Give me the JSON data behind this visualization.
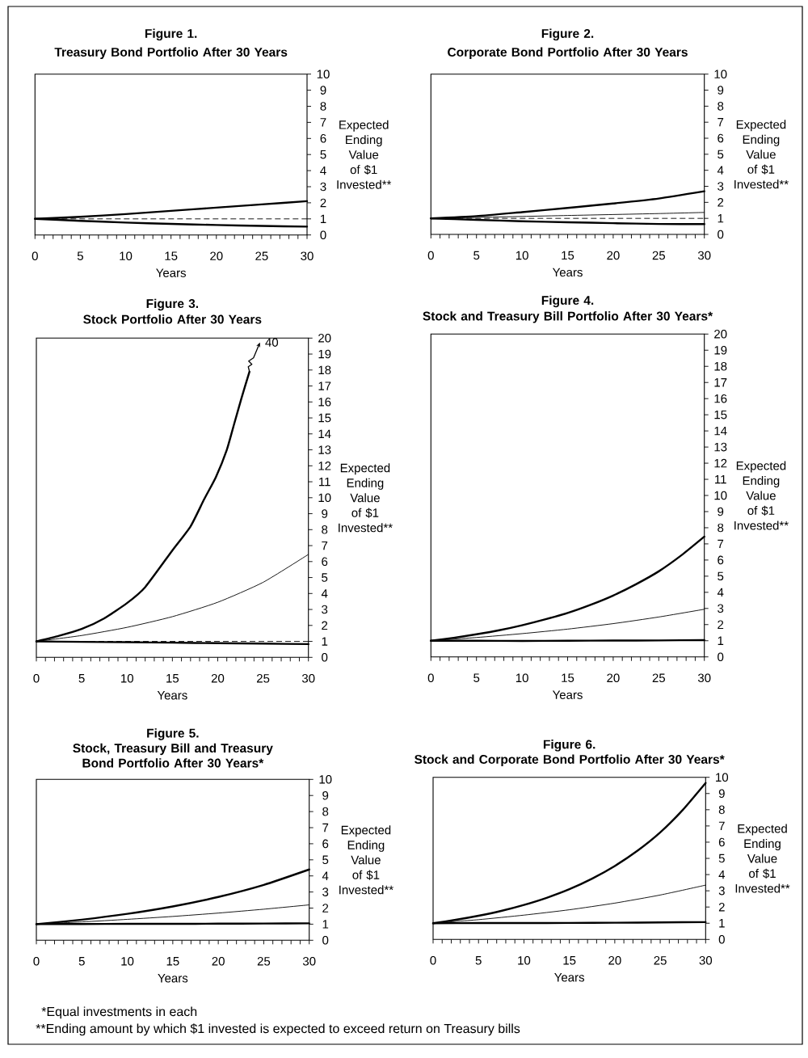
{
  "chart_data": [
    {
      "type": "line",
      "title": "Figure 1.",
      "subtitle": "Treasury Bond Portfolio After 30 Years",
      "xlabel": "Years",
      "ylabel": "Expected Ending Value of $1 Invested**",
      "x": [
        0,
        5,
        10,
        15,
        20,
        25,
        30
      ],
      "series": [
        {
          "color": "#000000",
          "values": [
            1,
            1.13,
            1.3,
            1.5,
            1.7,
            1.9,
            2.1
          ]
        },
        {
          "color": "#000000",
          "values": [
            1,
            0.88,
            0.77,
            0.69,
            0.62,
            0.56,
            0.52
          ]
        }
      ],
      "ref_lines": [
        {
          "axis": "y",
          "value": 1,
          "line_style": "dashed",
          "color": "#000000"
        }
      ],
      "xlim": [
        0,
        30
      ],
      "ylim": [
        0,
        10
      ],
      "xticks": [
        0,
        {
          "value": 1,
          "label": null
        },
        {
          "value": 2,
          "label": null
        },
        {
          "value": 3,
          "label": null
        },
        {
          "value": 4,
          "label": null
        },
        5,
        {
          "value": 6,
          "label": null
        },
        {
          "value": 7,
          "label": null
        },
        {
          "value": 8,
          "label": null
        },
        {
          "value": 9,
          "label": null
        },
        10,
        {
          "value": 11,
          "label": null
        },
        {
          "value": 12,
          "label": null
        },
        {
          "value": 13,
          "label": null
        },
        {
          "value": 14,
          "label": null
        },
        15,
        {
          "value": 16,
          "label": null
        },
        {
          "value": 17,
          "label": null
        },
        {
          "value": 18,
          "label": null
        },
        {
          "value": 19,
          "label": null
        },
        20,
        {
          "value": 21,
          "label": null
        },
        {
          "value": 22,
          "label": null
        },
        {
          "value": 23,
          "label": null
        },
        {
          "value": 24,
          "label": null
        },
        25,
        {
          "value": 26,
          "label": null
        },
        {
          "value": 27,
          "label": null
        },
        {
          "value": 28,
          "label": null
        },
        {
          "value": 29,
          "label": null
        },
        30
      ],
      "yticks": [
        0,
        1,
        2,
        3,
        4,
        5,
        6,
        7,
        8,
        9,
        10
      ]
    },
    {
      "type": "line",
      "title": "Figure 2.",
      "subtitle": "Corporate Bond Portfolio After 30 Years",
      "xlabel": "Years",
      "ylabel": "Expected Ending Value of $1 Invested**",
      "x": [
        0,
        5,
        10,
        15,
        20,
        25,
        30
      ],
      "series": [
        {
          "color": "#000000",
          "values": [
            1,
            1.14,
            1.39,
            1.65,
            1.93,
            2.24,
            2.69
          ]
        },
        {
          "color": "#000000",
          "values": [
            1,
            0.91,
            0.82,
            0.76,
            0.7,
            0.65,
            0.64
          ]
        },
        {
          "color": "#000000",
          "values": [
            1,
            1.06,
            1.12,
            1.18,
            1.24,
            1.3,
            1.37
          ]
        }
      ],
      "ref_lines": [
        {
          "axis": "y",
          "value": 1,
          "line_style": "dashed",
          "color": "#000000"
        }
      ],
      "xlim": [
        0,
        30
      ],
      "ylim": [
        0,
        10
      ],
      "xticks": [
        0,
        {
          "value": 1,
          "label": null
        },
        {
          "value": 2,
          "label": null
        },
        {
          "value": 3,
          "label": null
        },
        {
          "value": 4,
          "label": null
        },
        5,
        {
          "value": 6,
          "label": null
        },
        {
          "value": 7,
          "label": null
        },
        {
          "value": 8,
          "label": null
        },
        {
          "value": 9,
          "label": null
        },
        10,
        {
          "value": 11,
          "label": null
        },
        {
          "value": 12,
          "label": null
        },
        {
          "value": 13,
          "label": null
        },
        {
          "value": 14,
          "label": null
        },
        15,
        {
          "value": 16,
          "label": null
        },
        {
          "value": 17,
          "label": null
        },
        {
          "value": 18,
          "label": null
        },
        {
          "value": 19,
          "label": null
        },
        20,
        {
          "value": 21,
          "label": null
        },
        {
          "value": 22,
          "label": null
        },
        {
          "value": 23,
          "label": null
        },
        {
          "value": 24,
          "label": null
        },
        25,
        {
          "value": 26,
          "label": null
        },
        {
          "value": 27,
          "label": null
        },
        {
          "value": 28,
          "label": null
        },
        {
          "value": 29,
          "label": null
        },
        30
      ],
      "yticks": [
        0,
        1,
        2,
        3,
        4,
        5,
        6,
        7,
        8,
        9,
        10
      ]
    },
    {
      "type": "line",
      "title": "Figure 3.",
      "subtitle": "Stock Portfolio After 30 Years",
      "xlabel": "Years",
      "ylabel": "Expected Ending Value of $1 Invested**",
      "x": [
        0,
        5,
        10,
        15,
        20,
        25,
        30
      ],
      "series": [
        {
          "color": "#000000",
          "x": [
            0,
            2.5,
            5,
            7.5,
            10,
            12,
            15,
            17,
            18.5,
            19.8,
            21,
            21.8,
            22.6,
            23.5
          ],
          "values": [
            1,
            1.35,
            1.78,
            2.45,
            3.4,
            4.4,
            6.7,
            8.2,
            9.9,
            11.3,
            13.0,
            14.6,
            16.2,
            17.9
          ]
        },
        {
          "color": "#000000",
          "values": [
            1,
            0.97,
            0.95,
            0.92,
            0.89,
            0.86,
            0.83
          ]
        },
        {
          "color": "#000000",
          "values": [
            1,
            1.37,
            1.88,
            2.55,
            3.45,
            4.7,
            6.45
          ]
        }
      ],
      "ref_lines": [
        {
          "axis": "y",
          "value": 1,
          "line_style": "dashed",
          "color": "#000000"
        }
      ],
      "annotations": [
        "40"
      ],
      "xlim": [
        0,
        30
      ],
      "ylim": [
        0,
        20
      ],
      "xticks": [
        0,
        {
          "value": 1,
          "label": null
        },
        {
          "value": 2,
          "label": null
        },
        {
          "value": 3,
          "label": null
        },
        {
          "value": 4,
          "label": null
        },
        5,
        {
          "value": 6,
          "label": null
        },
        {
          "value": 7,
          "label": null
        },
        {
          "value": 8,
          "label": null
        },
        {
          "value": 9,
          "label": null
        },
        10,
        {
          "value": 11,
          "label": null
        },
        {
          "value": 12,
          "label": null
        },
        {
          "value": 13,
          "label": null
        },
        {
          "value": 14,
          "label": null
        },
        15,
        {
          "value": 16,
          "label": null
        },
        {
          "value": 17,
          "label": null
        },
        {
          "value": 18,
          "label": null
        },
        {
          "value": 19,
          "label": null
        },
        20,
        {
          "value": 21,
          "label": null
        },
        {
          "value": 22,
          "label": null
        },
        {
          "value": 23,
          "label": null
        },
        {
          "value": 24,
          "label": null
        },
        25,
        {
          "value": 26,
          "label": null
        },
        {
          "value": 27,
          "label": null
        },
        {
          "value": 28,
          "label": null
        },
        {
          "value": 29,
          "label": null
        },
        30
      ],
      "yticks": [
        0,
        1,
        2,
        3,
        4,
        5,
        6,
        7,
        8,
        9,
        10,
        11,
        12,
        13,
        14,
        15,
        16,
        17,
        18,
        19,
        20
      ]
    },
    {
      "type": "line",
      "title": "Figure 4.",
      "subtitle": "Stock and Treasury Bill Portfolio After 30 Years*",
      "xlabel": "Years",
      "ylabel": "Expected Ending Value of $1 Invested**",
      "x": [
        0,
        5,
        10,
        15,
        20,
        25,
        30
      ],
      "series": [
        {
          "color": "#000000",
          "x": [
            0,
            2.5,
            5,
            7.5,
            10,
            12.5,
            15,
            17.5,
            20,
            22.5,
            25,
            27.5,
            30
          ],
          "values": [
            1,
            1.18,
            1.4,
            1.65,
            1.96,
            2.32,
            2.72,
            3.22,
            3.8,
            4.5,
            5.3,
            6.3,
            7.45
          ]
        },
        {
          "color": "#000000",
          "values": [
            1,
            1,
            0.99,
            1,
            1.01,
            1.02,
            1.04
          ]
        },
        {
          "color": "#000000",
          "values": [
            1,
            1.2,
            1.44,
            1.72,
            2.06,
            2.47,
            2.95
          ]
        }
      ],
      "xlim": [
        0,
        30
      ],
      "ylim": [
        0,
        20
      ],
      "xticks": [
        0,
        {
          "value": 1,
          "label": null
        },
        {
          "value": 2,
          "label": null
        },
        {
          "value": 3,
          "label": null
        },
        {
          "value": 4,
          "label": null
        },
        5,
        {
          "value": 6,
          "label": null
        },
        {
          "value": 7,
          "label": null
        },
        {
          "value": 8,
          "label": null
        },
        {
          "value": 9,
          "label": null
        },
        10,
        {
          "value": 11,
          "label": null
        },
        {
          "value": 12,
          "label": null
        },
        {
          "value": 13,
          "label": null
        },
        {
          "value": 14,
          "label": null
        },
        15,
        {
          "value": 16,
          "label": null
        },
        {
          "value": 17,
          "label": null
        },
        {
          "value": 18,
          "label": null
        },
        {
          "value": 19,
          "label": null
        },
        20,
        {
          "value": 21,
          "label": null
        },
        {
          "value": 22,
          "label": null
        },
        {
          "value": 23,
          "label": null
        },
        {
          "value": 24,
          "label": null
        },
        25,
        {
          "value": 26,
          "label": null
        },
        {
          "value": 27,
          "label": null
        },
        {
          "value": 28,
          "label": null
        },
        {
          "value": 29,
          "label": null
        },
        30
      ],
      "yticks": [
        0,
        1,
        2,
        3,
        4,
        5,
        6,
        7,
        8,
        9,
        10,
        11,
        12,
        13,
        14,
        15,
        16,
        17,
        18,
        19,
        20
      ]
    },
    {
      "type": "line",
      "title": "Figure 5.",
      "subtitle": "Stock, Treasury Bill and Treasury Bond Portfolio After 30 Years*",
      "xlabel": "Years",
      "ylabel": "Expected Ending Value of $1 Invested**",
      "x": [
        0,
        5,
        10,
        15,
        20,
        25,
        30
      ],
      "series": [
        {
          "color": "#000000",
          "values": [
            1,
            1.28,
            1.64,
            2.1,
            2.69,
            3.44,
            4.4
          ]
        },
        {
          "color": "#000000",
          "values": [
            1,
            1.01,
            1.02,
            1.02,
            1.03,
            1.04,
            1.05
          ]
        },
        {
          "color": "#000000",
          "values": [
            1,
            1.14,
            1.3,
            1.48,
            1.69,
            1.93,
            2.2
          ]
        }
      ],
      "annotations": [
        "*Equal investments in each",
        "**Ending amount by which $1 invested is expected to exceed return on Treasury bills"
      ],
      "xlim": [
        0,
        30
      ],
      "ylim": [
        0,
        10
      ],
      "xticks": [
        0,
        {
          "value": 1,
          "label": null
        },
        {
          "value": 2,
          "label": null
        },
        {
          "value": 3,
          "label": null
        },
        {
          "value": 4,
          "label": null
        },
        5,
        {
          "value": 6,
          "label": null
        },
        {
          "value": 7,
          "label": null
        },
        {
          "value": 8,
          "label": null
        },
        {
          "value": 9,
          "label": null
        },
        10,
        {
          "value": 11,
          "label": null
        },
        {
          "value": 12,
          "label": null
        },
        {
          "value": 13,
          "label": null
        },
        {
          "value": 14,
          "label": null
        },
        15,
        {
          "value": 16,
          "label": null
        },
        {
          "value": 17,
          "label": null
        },
        {
          "value": 18,
          "label": null
        },
        {
          "value": 19,
          "label": null
        },
        20,
        {
          "value": 21,
          "label": null
        },
        {
          "value": 22,
          "label": null
        },
        {
          "value": 23,
          "label": null
        },
        {
          "value": 24,
          "label": null
        },
        25,
        {
          "value": 26,
          "label": null
        },
        {
          "value": 27,
          "label": null
        },
        {
          "value": 28,
          "label": null
        },
        {
          "value": 29,
          "label": null
        },
        30
      ],
      "yticks": [
        0,
        1,
        2,
        3,
        4,
        5,
        6,
        7,
        8,
        9,
        10
      ]
    },
    {
      "type": "line",
      "title": "Figure 6.",
      "subtitle": "Stock and Corporate Bond Portfolio After 30 Years*",
      "xlabel": "Years",
      "ylabel": "Expected Ending Value of $1 Invested**",
      "x": [
        0,
        5,
        10,
        15,
        20,
        25,
        30
      ],
      "series": [
        {
          "color": "#000000",
          "x": [
            0,
            2.5,
            5,
            7.5,
            10,
            12.5,
            15,
            17.5,
            20,
            22.5,
            25,
            27.5,
            30
          ],
          "values": [
            1,
            1.21,
            1.46,
            1.76,
            2.13,
            2.57,
            3.1,
            3.75,
            4.53,
            5.47,
            6.6,
            8.0,
            9.65
          ]
        },
        {
          "color": "#000000",
          "values": [
            1,
            1.01,
            1.01,
            1.02,
            1.03,
            1.05,
            1.07
          ]
        },
        {
          "color": "#000000",
          "values": [
            1,
            1.22,
            1.5,
            1.83,
            2.24,
            2.74,
            3.35
          ]
        }
      ],
      "xlim": [
        0,
        30
      ],
      "ylim": [
        0,
        10
      ],
      "xticks": [
        0,
        {
          "value": 1,
          "label": null
        },
        {
          "value": 2,
          "label": null
        },
        {
          "value": 3,
          "label": null
        },
        {
          "value": 4,
          "label": null
        },
        5,
        {
          "value": 6,
          "label": null
        },
        {
          "value": 7,
          "label": null
        },
        {
          "value": 8,
          "label": null
        },
        {
          "value": 9,
          "label": null
        },
        10,
        {
          "value": 11,
          "label": null
        },
        {
          "value": 12,
          "label": null
        },
        {
          "value": 13,
          "label": null
        },
        {
          "value": 14,
          "label": null
        },
        15,
        {
          "value": 16,
          "label": null
        },
        {
          "value": 17,
          "label": null
        },
        {
          "value": 18,
          "label": null
        },
        {
          "value": 19,
          "label": null
        },
        20,
        {
          "value": 21,
          "label": null
        },
        {
          "value": 22,
          "label": null
        },
        {
          "value": 23,
          "label": null
        },
        {
          "value": 24,
          "label": null
        },
        25,
        {
          "value": 26,
          "label": null
        },
        {
          "value": 27,
          "label": null
        },
        {
          "value": 28,
          "label": null
        },
        {
          "value": 29,
          "label": null
        },
        30
      ],
      "yticks": [
        0,
        1,
        2,
        3,
        4,
        5,
        6,
        7,
        8,
        9,
        10
      ]
    }
  ]
}
